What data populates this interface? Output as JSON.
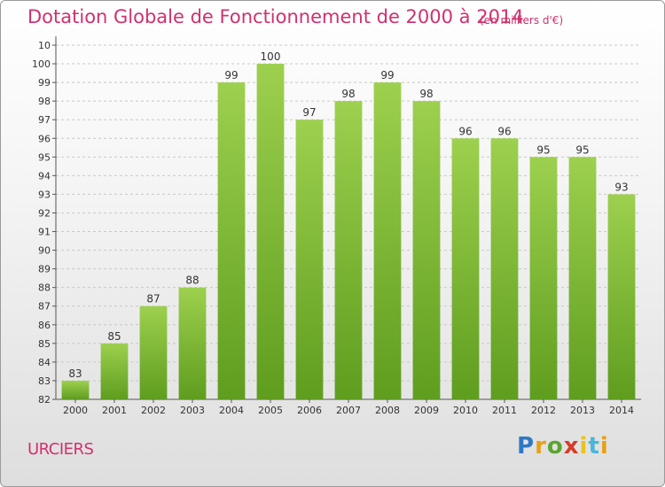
{
  "chart_data": {
    "type": "bar",
    "title": "Dotation Globale de Fonctionnement de 2000 à 2014",
    "subtitle": "(en milliers d'€)",
    "categories": [
      "2000",
      "2001",
      "2002",
      "2003",
      "2004",
      "2005",
      "2006",
      "2007",
      "2008",
      "2009",
      "2010",
      "2011",
      "2012",
      "2013",
      "2014"
    ],
    "values": [
      83,
      85,
      87,
      88,
      99,
      100,
      97,
      98,
      99,
      98,
      96,
      96,
      95,
      95,
      93
    ],
    "ylim": [
      82,
      101
    ],
    "yticks": [
      "82",
      "83",
      "84",
      "85",
      "86",
      "87",
      "88",
      "89",
      "90",
      "91",
      "92",
      "93",
      "94",
      "95",
      "96",
      "97",
      "98",
      "99",
      "100",
      "10"
    ],
    "grid": true,
    "colors": {
      "bar_top": "#9dd04e",
      "bar_bottom": "#5f9d1f",
      "title": "#d0316f"
    }
  },
  "footer": {
    "commune": "URCIERS",
    "logo_text": "Proxiti"
  }
}
